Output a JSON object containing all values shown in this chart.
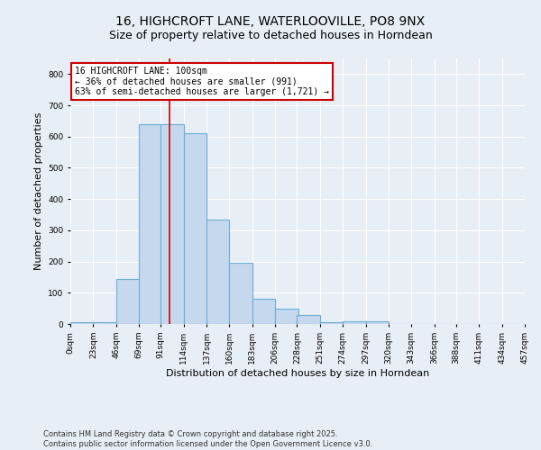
{
  "title_line1": "16, HIGHCROFT LANE, WATERLOOVILLE, PO8 9NX",
  "title_line2": "Size of property relative to detached houses in Horndean",
  "xlabel": "Distribution of detached houses by size in Horndean",
  "ylabel": "Number of detached properties",
  "bar_color": "#c5d8ed",
  "bar_edge_color": "#6aaed6",
  "bin_width": 23,
  "bin_starts": [
    0,
    23,
    46,
    69,
    91,
    114,
    137,
    160,
    183,
    206,
    228,
    251,
    274,
    297,
    320,
    343,
    366,
    388,
    411,
    434
  ],
  "bar_heights": [
    5,
    5,
    145,
    640,
    640,
    610,
    335,
    195,
    80,
    50,
    30,
    5,
    10,
    10,
    0,
    0,
    0,
    0,
    0,
    0
  ],
  "red_line_x": 100,
  "red_line_color": "#cc0000",
  "annotation_text": "16 HIGHCROFT LANE: 100sqm\n← 36% of detached houses are smaller (991)\n63% of semi-detached houses are larger (1,721) →",
  "annotation_box_color": "#ffffff",
  "annotation_edge_color": "#cc0000",
  "ylim": [
    0,
    850
  ],
  "yticks": [
    0,
    100,
    200,
    300,
    400,
    500,
    600,
    700,
    800
  ],
  "background_color": "#e8eef5",
  "grid_color": "#ffffff",
  "footer_text": "Contains HM Land Registry data © Crown copyright and database right 2025.\nContains public sector information licensed under the Open Government Licence v3.0.",
  "title_fontsize": 10,
  "subtitle_fontsize": 9,
  "tick_fontsize": 6.5,
  "axis_label_fontsize": 8,
  "annotation_fontsize": 7
}
